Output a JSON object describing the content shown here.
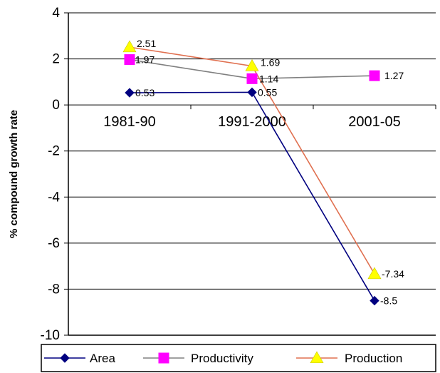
{
  "chart_data": {
    "type": "line",
    "title": "",
    "xlabel": "",
    "ylabel": "% compound growth rate",
    "ylim": [
      -10,
      4
    ],
    "yticks": [
      4,
      2,
      0,
      -2,
      -4,
      -6,
      -8,
      -10
    ],
    "categories": [
      "1981-90",
      "1991-2000",
      "2001-05"
    ],
    "grid": "horizontal",
    "legend_position": "bottom",
    "series": [
      {
        "name": "Area",
        "color": "#000080",
        "marker": "diamond",
        "values": [
          0.53,
          0.55,
          -8.5
        ],
        "labels": [
          "0.53",
          "0.55",
          "-8.5"
        ]
      },
      {
        "name": "Productivity",
        "color": "#ff00ff",
        "line_color": "#808080",
        "marker": "square",
        "values": [
          1.97,
          1.14,
          1.27
        ],
        "labels": [
          "1.97",
          "1.14",
          "1.27"
        ]
      },
      {
        "name": "Production",
        "color": "#ffff00",
        "line_color": "#e07050",
        "marker": "triangle",
        "values": [
          2.51,
          1.69,
          -7.34
        ],
        "labels": [
          "2.51",
          "1.69",
          "-7.34"
        ]
      }
    ]
  }
}
